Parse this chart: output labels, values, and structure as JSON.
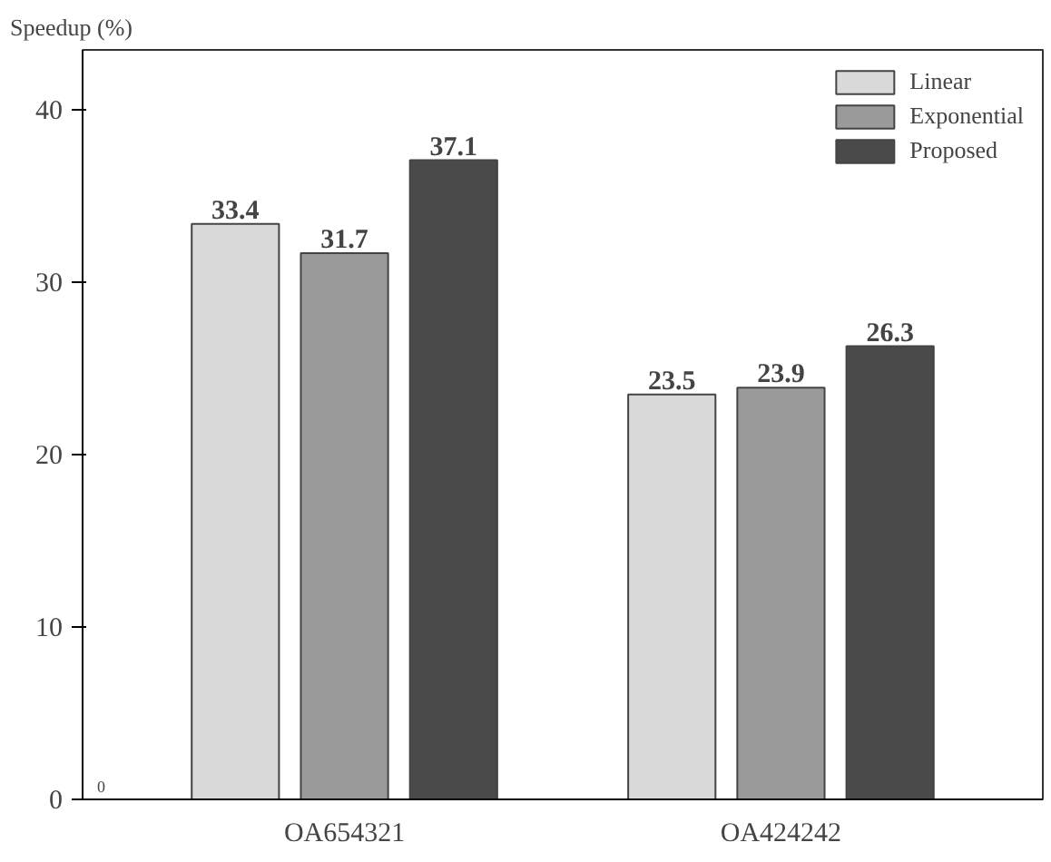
{
  "chart_data": {
    "type": "bar",
    "ylabel": "Speedup (%)",
    "categories": [
      "OA654321",
      "OA424242"
    ],
    "series": [
      {
        "name": "Linear",
        "color": "#d9d9d9",
        "values": [
          33.4,
          23.5
        ]
      },
      {
        "name": "Exponential",
        "color": "#9a9a9a",
        "values": [
          31.7,
          23.9
        ]
      },
      {
        "name": "Proposed",
        "color": "#4a4a4a",
        "values": [
          37.1,
          26.3
        ]
      }
    ],
    "ylim": [
      0,
      43.5
    ],
    "yticks": [
      0,
      10,
      20,
      30,
      40
    ],
    "data_labels": true,
    "grid": false,
    "legend": "top right",
    "annotations": [
      "0"
    ]
  }
}
